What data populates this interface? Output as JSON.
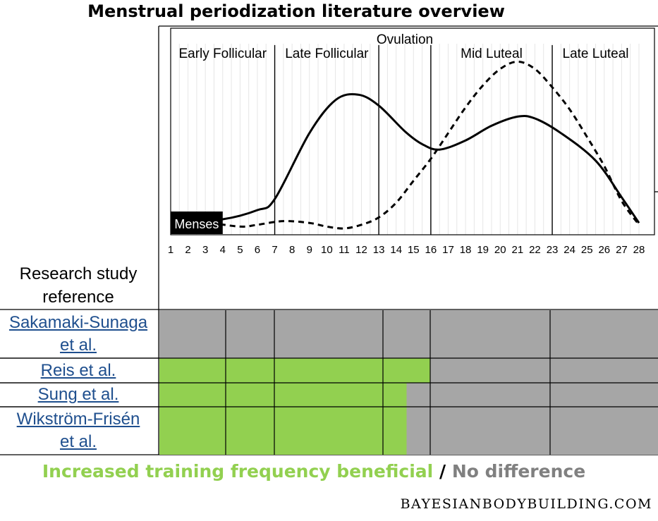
{
  "title": "Menstrual periodization literature overview",
  "research_header": [
    "Research study",
    "reference"
  ],
  "studies": [
    {
      "name": [
        "Sakamaki-Sunaga",
        "et al."
      ],
      "beneficial_through_day": null
    },
    {
      "name": [
        "Reis et al."
      ],
      "beneficial_through_day": 16
    },
    {
      "name": [
        "Sung et al."
      ],
      "beneficial_through_day": 14.5
    },
    {
      "name": [
        "Wikström-Frisén",
        "et al."
      ],
      "beneficial_through_day": 14.5
    }
  ],
  "legend": {
    "beneficial": "Increased training frequency beneficial",
    "separator": "/",
    "no_difference": "No difference"
  },
  "colors": {
    "beneficial": "#92d050",
    "no_difference": "#a6a6a6"
  },
  "watermark": "BAYESIANBODYBUILDING.COM",
  "chart_data": {
    "type": "line",
    "x": [
      1,
      2,
      3,
      4,
      5,
      6,
      7,
      8,
      9,
      10,
      11,
      12,
      13,
      14,
      15,
      16,
      17,
      18,
      19,
      20,
      21,
      22,
      23,
      24,
      25,
      26,
      27,
      28
    ],
    "x_ticks": [
      "1",
      "2",
      "3",
      "4",
      "5",
      "6",
      "7",
      "8",
      "9",
      "10",
      "11",
      "12",
      "13",
      "14",
      "15",
      "16",
      "17",
      "18",
      "19",
      "20",
      "21",
      "22",
      "23",
      "24",
      "25",
      "26",
      "27",
      "28"
    ],
    "xlim": [
      1,
      28
    ],
    "ylim": [
      0,
      100
    ],
    "phase_dividers": [
      7,
      13,
      16,
      23
    ],
    "phases": [
      {
        "label": "Early Follicular",
        "start": 1,
        "end": 7
      },
      {
        "label": "Late Follicular",
        "start": 7,
        "end": 13
      },
      {
        "label": "Mid Luteal",
        "start": 16,
        "end": 23
      },
      {
        "label": "Late Luteal",
        "start": 23,
        "end": 28
      }
    ],
    "ovulation_label": "Ovulation",
    "menses_label": "Menses",
    "menses_range": [
      1,
      4
    ],
    "series": [
      {
        "name": "solid",
        "style": "solid",
        "x": [
          1,
          4,
          6,
          7,
          9,
          10.5,
          11.8,
          13,
          14.5,
          15.5,
          16.5,
          18,
          19.5,
          21,
          22,
          23.5,
          25.5,
          27,
          28
        ],
        "values": [
          3,
          5,
          10,
          16,
          52,
          70,
          73,
          67,
          53,
          46,
          43,
          48,
          56,
          61,
          60,
          52,
          37,
          17,
          3
        ]
      },
      {
        "name": "dashed",
        "style": "dashed",
        "x": [
          1,
          3,
          5,
          6,
          7.5,
          9,
          10,
          11,
          12,
          13,
          14,
          15,
          16,
          17,
          18,
          19,
          20,
          21,
          22,
          23,
          24,
          25,
          26,
          27,
          28
        ],
        "values": [
          2,
          3,
          1,
          2,
          4,
          3,
          1,
          0,
          2,
          6,
          14,
          26,
          38,
          52,
          66,
          78,
          87,
          91,
          87,
          77,
          65,
          50,
          34,
          15,
          2
        ]
      }
    ]
  }
}
